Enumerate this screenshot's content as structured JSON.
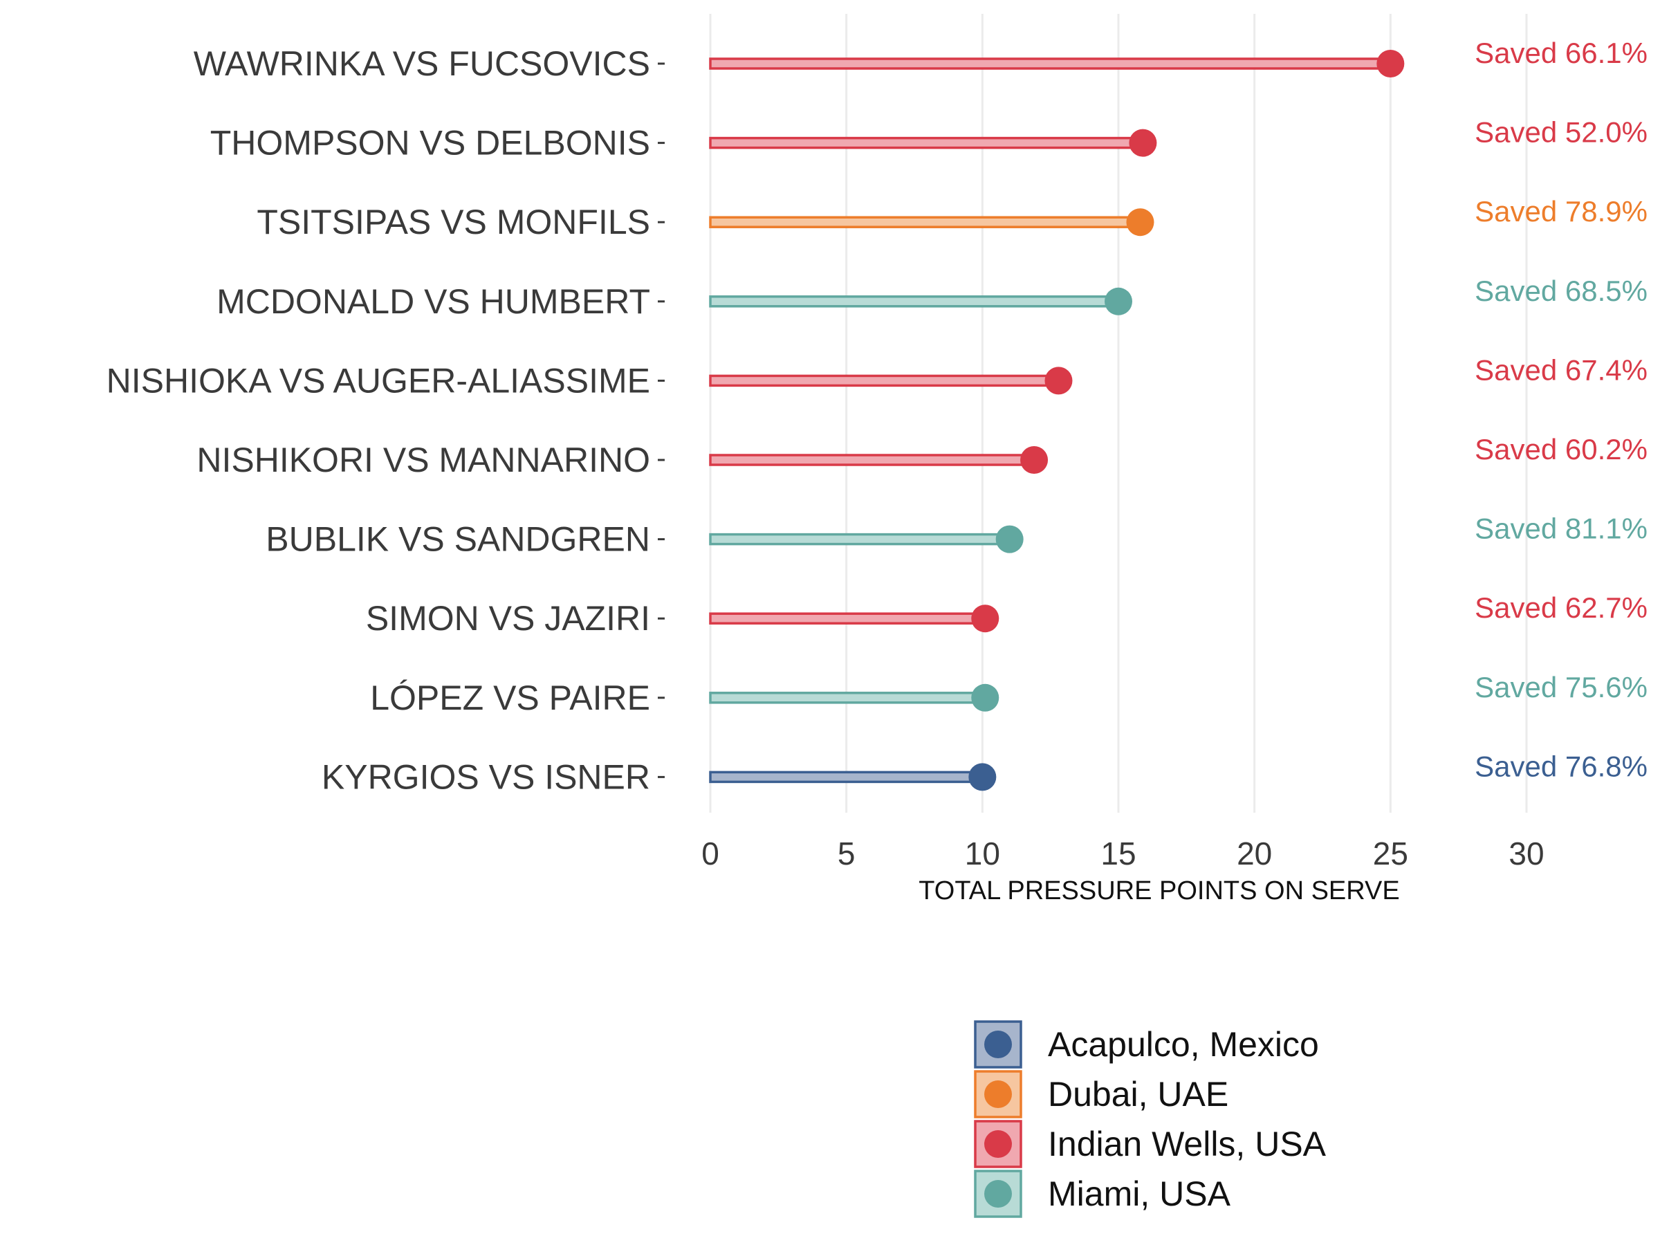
{
  "chart_data": {
    "type": "bar",
    "xlabel": "TOTAL PRESSURE POINTS ON SERVE",
    "xlim": [
      0,
      30
    ],
    "x_ticks": [
      "0",
      "5",
      "10",
      "15",
      "20",
      "25",
      "30"
    ],
    "grid": "vertical",
    "legend_position": "bottom",
    "colors": {
      "Acapulco, Mexico": "#3b5f91",
      "Dubai, UAE": "#ed7d2b",
      "Indian Wells, USA": "#d93a48",
      "Miami, USA": "#61a8a0"
    },
    "fill_colors": {
      "Acapulco, Mexico": "#a7b5cc",
      "Dubai, UAE": "#f6c6a0",
      "Indian Wells, USA": "#f0a8b0",
      "Miami, USA": "#b8dbd6"
    },
    "legend": [
      "Acapulco, Mexico",
      "Dubai, UAE",
      "Indian Wells, USA",
      "Miami, USA"
    ],
    "rows": [
      {
        "match": "WAWRINKA VS FUCSOVICS",
        "value": 25,
        "tournament": "Indian Wells, USA",
        "annotation": "Saved 66.1%"
      },
      {
        "match": "THOMPSON VS DELBONIS",
        "value": 15.9,
        "tournament": "Indian Wells, USA",
        "annotation": "Saved 52.0%"
      },
      {
        "match": "TSITSIPAS VS MONFILS",
        "value": 15.8,
        "tournament": "Dubai, UAE",
        "annotation": "Saved 78.9%"
      },
      {
        "match": "MCDONALD VS HUMBERT",
        "value": 15,
        "tournament": "Miami, USA",
        "annotation": "Saved 68.5%"
      },
      {
        "match": "NISHIOKA VS AUGER-ALIASSIME",
        "value": 12.8,
        "tournament": "Indian Wells, USA",
        "annotation": "Saved 67.4%"
      },
      {
        "match": "NISHIKORI VS MANNARINO",
        "value": 11.9,
        "tournament": "Indian Wells, USA",
        "annotation": "Saved 60.2%"
      },
      {
        "match": "BUBLIK VS SANDGREN",
        "value": 11,
        "tournament": "Miami, USA",
        "annotation": "Saved 81.1%"
      },
      {
        "match": "SIMON VS JAZIRI",
        "value": 10.1,
        "tournament": "Indian Wells, USA",
        "annotation": "Saved 62.7%"
      },
      {
        "match": "LÓPEZ VS PAIRE",
        "value": 10.1,
        "tournament": "Miami, USA",
        "annotation": "Saved 75.6%"
      },
      {
        "match": "KYRGIOS VS ISNER",
        "value": 10,
        "tournament": "Acapulco, Mexico",
        "annotation": "Saved 76.8%"
      }
    ]
  }
}
